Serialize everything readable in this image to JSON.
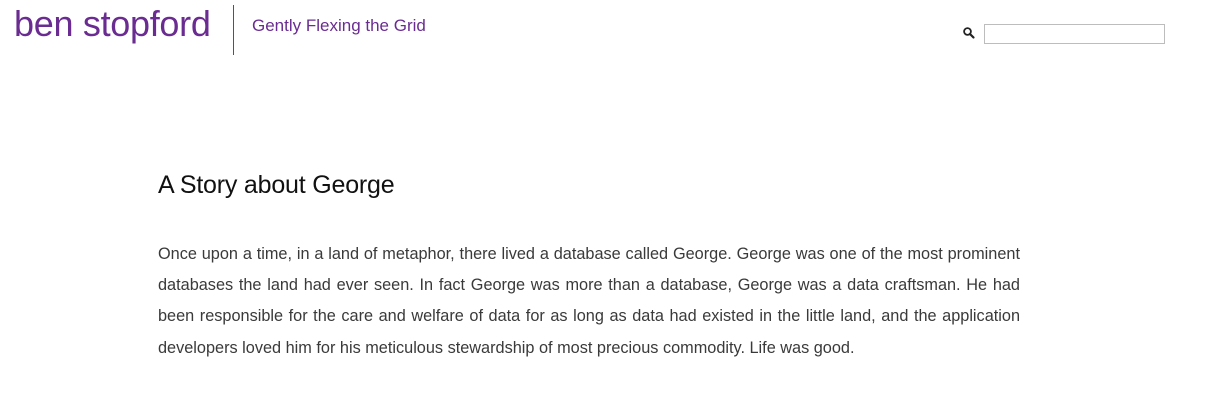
{
  "header": {
    "site_title": "ben stopford",
    "tagline": "Gently Flexing the Grid",
    "accent_color": "#6a2c91"
  },
  "search": {
    "icon": "search-icon",
    "value": "",
    "placeholder": ""
  },
  "post": {
    "title": "A Story about George",
    "body": "Once upon a time, in a land of metaphor, there lived a database called George. George was one of the most prominent databases the land had ever seen. In fact George was more than a database, George was a data craftsman. He had been responsible for the care and welfare of data for as long as data had existed in the little land, and the application developers loved him for his meticulous stewardship of most precious commodity. Life was good."
  }
}
